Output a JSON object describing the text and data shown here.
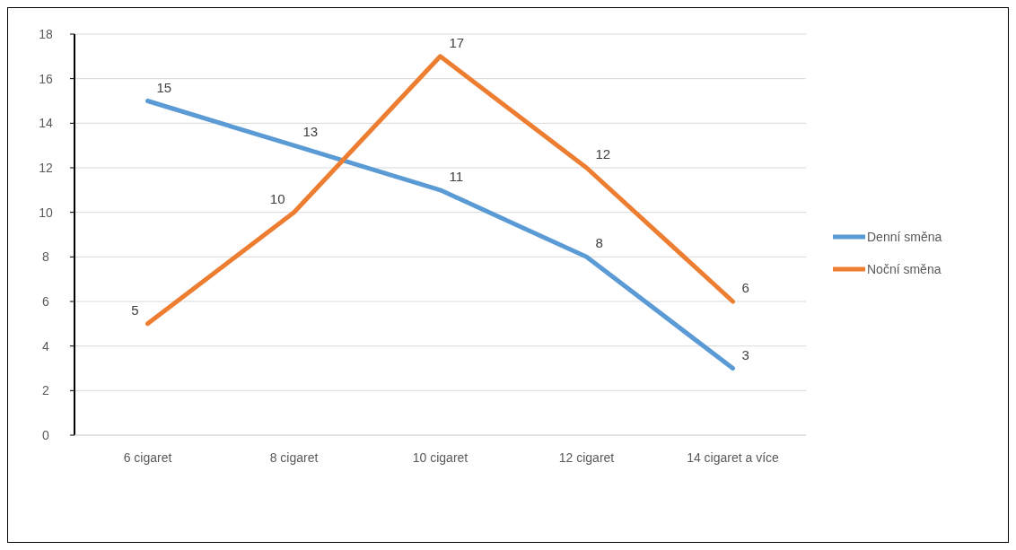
{
  "chart_data": {
    "type": "line",
    "categories": [
      "6 cigaret",
      "8 cigaret",
      "10 cigaret",
      "12 cigaret",
      "14 cigaret a více"
    ],
    "series": [
      {
        "name": "Denní směna",
        "color": "#5b9bd5",
        "values": [
          15,
          13,
          11,
          8,
          3
        ]
      },
      {
        "name": "Noční směna",
        "color": "#ed7d31",
        "values": [
          5,
          10,
          17,
          12,
          6
        ]
      }
    ],
    "ylim": [
      0,
      18
    ],
    "yticks": [
      0,
      2,
      4,
      6,
      8,
      10,
      12,
      14,
      16,
      18
    ],
    "grid": "y",
    "legend": "right",
    "data_labels": true,
    "marker": "none",
    "line_style": "solid"
  }
}
